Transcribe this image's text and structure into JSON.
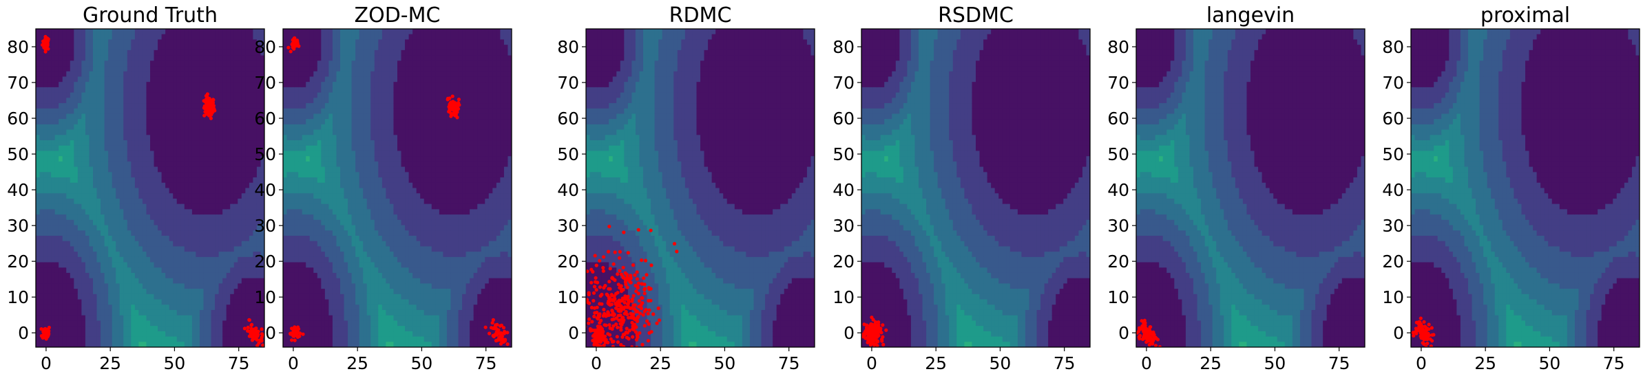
{
  "chart_data": [
    {
      "type": "scatter",
      "title": "Ground Truth",
      "xlim": [
        -4,
        85
      ],
      "ylim": [
        -4,
        85
      ],
      "xticks": [
        "0",
        "25",
        "50",
        "75"
      ],
      "yticks": [
        "0",
        "10",
        "20",
        "30",
        "40",
        "50",
        "60",
        "70",
        "80"
      ],
      "xtick_values": [
        0,
        25,
        50,
        75
      ],
      "ytick_values": [
        0,
        10,
        20,
        30,
        40,
        50,
        60,
        70,
        80
      ],
      "background": "contour",
      "clusters": [
        {
          "cx": 0,
          "cy": 81,
          "sx": 0.7,
          "sy": 0.9,
          "n": 35
        },
        {
          "cx": 63.5,
          "cy": 63,
          "sx": 1.0,
          "sy": 1.5,
          "n": 80
        },
        {
          "cx": 0,
          "cy": 0,
          "sx": 0.8,
          "sy": 1.0,
          "n": 45
        },
        {
          "cx": 81,
          "cy": 0,
          "sx": 1.1,
          "sy": 1.2,
          "n": 55,
          "diag": true
        }
      ]
    },
    {
      "type": "scatter",
      "title": "ZOD-MC",
      "xlim": [
        -4,
        85
      ],
      "ylim": [
        -4,
        85
      ],
      "xticks": [
        "0",
        "25",
        "50",
        "75"
      ],
      "yticks": [
        "0",
        "10",
        "20",
        "30",
        "40",
        "50",
        "60",
        "70",
        "80"
      ],
      "xtick_values": [
        0,
        25,
        50,
        75
      ],
      "ytick_values": [
        0,
        10,
        20,
        30,
        40,
        50,
        60,
        70,
        80
      ],
      "background": "contour",
      "clusters": [
        {
          "cx": 0.5,
          "cy": 81,
          "sx": 0.7,
          "sy": 0.8,
          "n": 35
        },
        {
          "cx": 62.5,
          "cy": 63,
          "sx": 0.9,
          "sy": 1.4,
          "n": 70
        },
        {
          "cx": 0.5,
          "cy": 0,
          "sx": 1.0,
          "sy": 1.0,
          "n": 55
        },
        {
          "cx": 80,
          "cy": 0,
          "sx": 1.1,
          "sy": 1.2,
          "n": 50,
          "diag": true
        }
      ]
    },
    {
      "type": "scatter",
      "title": "RDMC",
      "xlim": [
        -4,
        85
      ],
      "ylim": [
        -4,
        85
      ],
      "xticks": [
        "0",
        "25",
        "50",
        "75"
      ],
      "yticks": [
        "0",
        "10",
        "20",
        "30",
        "40",
        "50",
        "60",
        "70",
        "80"
      ],
      "xtick_values": [
        0,
        25,
        50,
        75
      ],
      "ytick_values": [
        0,
        10,
        20,
        30,
        40,
        50,
        60,
        70,
        80
      ],
      "background": "contour",
      "clusters": [
        {
          "cx": 9,
          "cy": 6,
          "sx": 6.5,
          "sy": 7.0,
          "n": 330
        },
        {
          "cx": 0.5,
          "cy": -1,
          "sx": 1.2,
          "sy": 1.2,
          "n": 80
        },
        {
          "cx": 18,
          "cy": 20,
          "sx": 8,
          "sy": 9,
          "n": 12
        }
      ]
    },
    {
      "type": "scatter",
      "title": "RSDMC",
      "xlim": [
        -4,
        85
      ],
      "ylim": [
        -4,
        85
      ],
      "xticks": [
        "0",
        "25",
        "50",
        "75"
      ],
      "yticks": [
        "0",
        "10",
        "20",
        "30",
        "40",
        "50",
        "60",
        "70",
        "80"
      ],
      "xtick_values": [
        0,
        25,
        50,
        75
      ],
      "ytick_values": [
        0,
        10,
        20,
        30,
        40,
        50,
        60,
        70,
        80
      ],
      "background": "contour",
      "clusters": [
        {
          "cx": 0.5,
          "cy": 0,
          "sx": 1.3,
          "sy": 1.4,
          "n": 160
        },
        {
          "cx": 1,
          "cy": 0,
          "sx": 2.2,
          "sy": 2.4,
          "n": 25
        }
      ]
    },
    {
      "type": "scatter",
      "title": "langevin",
      "xlim": [
        -4,
        85
      ],
      "ylim": [
        -4,
        85
      ],
      "xticks": [
        "0",
        "25",
        "50",
        "75"
      ],
      "yticks": [
        "0",
        "10",
        "20",
        "30",
        "40",
        "50",
        "60",
        "70",
        "80"
      ],
      "xtick_values": [
        0,
        25,
        50,
        75
      ],
      "ytick_values": [
        0,
        10,
        20,
        30,
        40,
        50,
        60,
        70,
        80
      ],
      "background": "contour",
      "clusters": [
        {
          "cx": 0.3,
          "cy": -0.5,
          "sx": 1.1,
          "sy": 1.3,
          "n": 90,
          "diag": true
        }
      ]
    },
    {
      "type": "scatter",
      "title": "proximal",
      "xlim": [
        -4,
        85
      ],
      "ylim": [
        -4,
        85
      ],
      "xticks": [
        "0",
        "25",
        "50",
        "75"
      ],
      "yticks": [
        "0",
        "10",
        "20",
        "30",
        "40",
        "50",
        "60",
        "70",
        "80"
      ],
      "xtick_values": [
        0,
        25,
        50,
        75
      ],
      "ytick_values": [
        0,
        10,
        20,
        30,
        40,
        50,
        60,
        70,
        80
      ],
      "background": "contour",
      "clusters": [
        {
          "cx": 0.8,
          "cy": 0,
          "sx": 1.2,
          "sy": 1.2,
          "n": 90,
          "diag": true
        }
      ]
    }
  ],
  "colors": {
    "points": "#ff0000",
    "levels": [
      "#471164",
      "#433e85",
      "#38598c",
      "#2d708e",
      "#25858e",
      "#1e9b8a",
      "#2ab07f",
      "#51c56a",
      "#86d549",
      "#c2df23"
    ]
  }
}
